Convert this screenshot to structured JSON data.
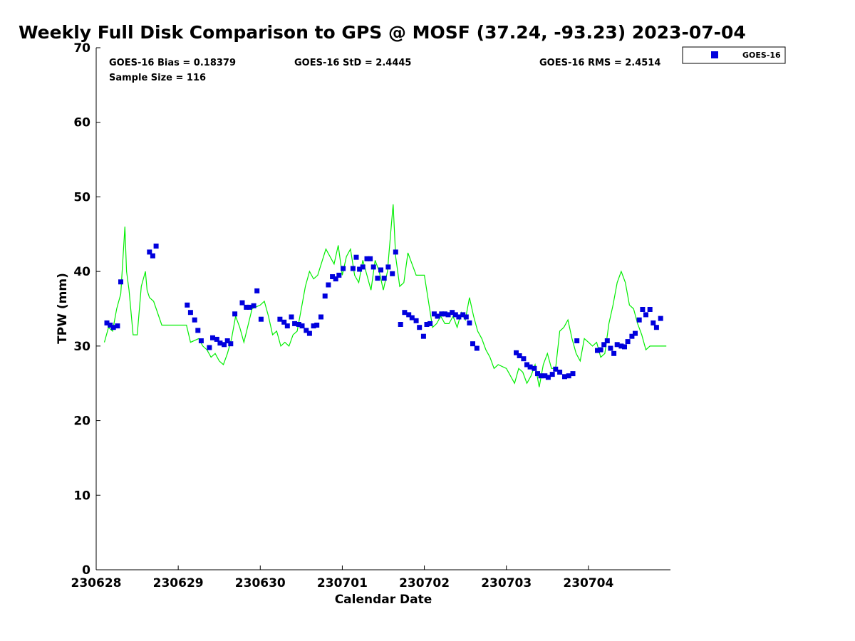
{
  "chart_data": {
    "type": "scatter",
    "title": "Weekly Full Disk Comparison to GPS @ MOSF (37.24, -93.23) 2023-07-04",
    "xlabel": "Calendar Date",
    "ylabel": "TPW (mm)",
    "xlim": [
      0,
      7
    ],
    "ylim": [
      0,
      70
    ],
    "x_ticks": [
      0,
      1,
      2,
      3,
      4,
      5,
      6
    ],
    "x_tick_labels": [
      "230628",
      "230629",
      "230630",
      "230701",
      "230702",
      "230703",
      "230704"
    ],
    "y_ticks": [
      0,
      10,
      20,
      30,
      40,
      50,
      60,
      70
    ],
    "y_tick_labels": [
      "0",
      "10",
      "20",
      "30",
      "40",
      "50",
      "60",
      "70"
    ],
    "colors": {
      "goes": "#0000dd",
      "gps": "#00ee00"
    },
    "stats": {
      "bias": "GOES-16 Bias = 0.18379",
      "std": "GOES-16 StD = 2.4445",
      "rms": "GOES-16 RMS = 2.4514",
      "sample": "Sample Size = 116"
    },
    "legend": {
      "label": "GOES-16",
      "position": "outside-top-right"
    },
    "series": [
      {
        "name": "GOES-16",
        "marker": "square",
        "x": [
          0.13,
          0.17,
          0.21,
          0.26,
          0.3,
          0.65,
          0.69,
          0.73,
          1.11,
          1.15,
          1.2,
          1.24,
          1.28,
          1.38,
          1.42,
          1.47,
          1.51,
          1.56,
          1.6,
          1.64,
          1.69,
          1.78,
          1.83,
          1.87,
          1.92,
          1.96,
          2.01,
          2.24,
          2.29,
          2.33,
          2.38,
          2.42,
          2.47,
          2.51,
          2.56,
          2.6,
          2.65,
          2.69,
          2.74,
          2.79,
          2.83,
          2.88,
          2.92,
          2.96,
          3.01,
          3.13,
          3.17,
          3.21,
          3.25,
          3.3,
          3.34,
          3.38,
          3.43,
          3.47,
          3.51,
          3.56,
          3.61,
          3.65,
          3.71,
          3.76,
          3.81,
          3.85,
          3.9,
          3.94,
          3.99,
          4.03,
          4.07,
          4.12,
          4.16,
          4.21,
          4.25,
          4.29,
          4.34,
          4.38,
          4.42,
          4.47,
          4.51,
          4.55,
          4.59,
          4.64,
          5.12,
          5.16,
          5.21,
          5.25,
          5.29,
          5.34,
          5.38,
          5.42,
          5.47,
          5.51,
          5.56,
          5.6,
          5.65,
          5.71,
          5.76,
          5.81,
          5.86,
          6.11,
          6.15,
          6.19,
          6.23,
          6.27,
          6.31,
          6.35,
          6.4,
          6.44,
          6.48,
          6.53,
          6.57,
          6.62,
          6.66,
          6.7,
          6.75,
          6.79,
          6.83,
          6.88
        ],
        "y": [
          33.1,
          32.8,
          32.5,
          32.7,
          38.6,
          42.6,
          42.1,
          43.4,
          35.5,
          34.5,
          33.5,
          32.1,
          30.7,
          29.8,
          31.1,
          30.9,
          30.4,
          30.2,
          30.7,
          30.3,
          34.3,
          35.8,
          35.2,
          35.2,
          35.4,
          37.4,
          33.6,
          33.6,
          33.2,
          32.7,
          33.9,
          33.0,
          32.9,
          32.7,
          32.1,
          31.7,
          32.7,
          32.8,
          33.9,
          36.7,
          38.2,
          39.3,
          39.0,
          39.5,
          40.4,
          40.4,
          41.9,
          40.3,
          40.6,
          41.7,
          41.7,
          40.6,
          39.1,
          40.2,
          39.1,
          40.6,
          39.7,
          42.6,
          32.9,
          34.5,
          34.2,
          33.8,
          33.4,
          32.5,
          31.3,
          32.9,
          33.0,
          34.3,
          34.0,
          34.3,
          34.3,
          34.2,
          34.5,
          34.2,
          33.9,
          34.2,
          33.9,
          33.1,
          30.3,
          29.7,
          29.1,
          28.7,
          28.3,
          27.5,
          27.2,
          27.0,
          26.3,
          26.0,
          26.0,
          25.8,
          26.2,
          26.9,
          26.5,
          25.9,
          26.0,
          26.3,
          30.7,
          29.4,
          29.5,
          30.2,
          30.7,
          29.7,
          29.0,
          30.2,
          30.0,
          29.9,
          30.6,
          31.3,
          31.7,
          33.5,
          34.9,
          34.2,
          34.9,
          33.1,
          32.5,
          33.7
        ]
      },
      {
        "name": "GPS",
        "marker": "line",
        "x": [
          0.1,
          0.15,
          0.2,
          0.25,
          0.3,
          0.35,
          0.37,
          0.4,
          0.45,
          0.5,
          0.55,
          0.6,
          0.62,
          0.65,
          0.7,
          0.8,
          1.0,
          1.1,
          1.15,
          1.25,
          1.3,
          1.35,
          1.4,
          1.45,
          1.5,
          1.55,
          1.6,
          1.65,
          1.7,
          1.75,
          1.8,
          1.9,
          2.0,
          2.05,
          2.1,
          2.15,
          2.2,
          2.25,
          2.3,
          2.35,
          2.4,
          2.45,
          2.5,
          2.55,
          2.6,
          2.65,
          2.7,
          2.8,
          2.9,
          2.95,
          3.0,
          3.05,
          3.1,
          3.15,
          3.2,
          3.25,
          3.3,
          3.35,
          3.4,
          3.45,
          3.5,
          3.55,
          3.6,
          3.62,
          3.65,
          3.7,
          3.75,
          3.8,
          3.85,
          3.9,
          4.0,
          4.1,
          4.15,
          4.2,
          4.25,
          4.3,
          4.35,
          4.4,
          4.45,
          4.5,
          4.55,
          4.6,
          4.65,
          4.7,
          4.75,
          4.8,
          4.85,
          4.9,
          5.0,
          5.1,
          5.15,
          5.2,
          5.25,
          5.3,
          5.35,
          5.4,
          5.45,
          5.5,
          5.55,
          5.6,
          5.65,
          5.7,
          5.75,
          5.8,
          5.85,
          5.9,
          5.95,
          6.0,
          6.05,
          6.1,
          6.15,
          6.2,
          6.25,
          6.3,
          6.35,
          6.4,
          6.45,
          6.5,
          6.55,
          6.6,
          6.65,
          6.7,
          6.75,
          6.8,
          6.85,
          6.9,
          6.95
        ],
        "y": [
          30.5,
          32.5,
          32.0,
          35.0,
          37.0,
          46.0,
          40.0,
          37.5,
          31.5,
          31.5,
          38.0,
          40.0,
          37.5,
          36.5,
          36.0,
          32.8,
          32.8,
          32.8,
          30.5,
          31.0,
          30.0,
          29.5,
          28.5,
          29.0,
          28.0,
          27.5,
          29.0,
          31.0,
          34.0,
          32.5,
          30.5,
          35.0,
          35.5,
          36.0,
          34.0,
          31.5,
          32.0,
          30.0,
          30.5,
          30.0,
          31.5,
          32.0,
          35.0,
          38.0,
          40.0,
          39.0,
          39.5,
          43.0,
          41.0,
          43.5,
          39.5,
          42.0,
          43.0,
          39.5,
          38.5,
          41.5,
          39.5,
          37.5,
          41.5,
          40.0,
          37.5,
          40.0,
          46.5,
          49.0,
          42.0,
          38.0,
          38.5,
          42.5,
          41.0,
          39.5,
          39.5,
          32.5,
          33.0,
          34.0,
          33.0,
          33.0,
          34.0,
          32.5,
          34.5,
          33.5,
          36.5,
          34.0,
          32.0,
          31.0,
          29.5,
          28.5,
          27.0,
          27.5,
          27.0,
          25.0,
          27.0,
          26.5,
          25.0,
          26.0,
          27.5,
          24.5,
          27.5,
          29.0,
          27.0,
          27.0,
          32.0,
          32.5,
          33.5,
          31.0,
          29.0,
          28.0,
          31.0,
          30.5,
          30.0,
          30.5,
          28.5,
          29.0,
          33.0,
          35.5,
          38.5,
          40.0,
          38.5,
          35.5,
          35.0,
          33.0,
          31.5,
          29.5,
          30.0,
          30.0,
          30.0,
          30.0,
          30.0
        ]
      }
    ]
  }
}
